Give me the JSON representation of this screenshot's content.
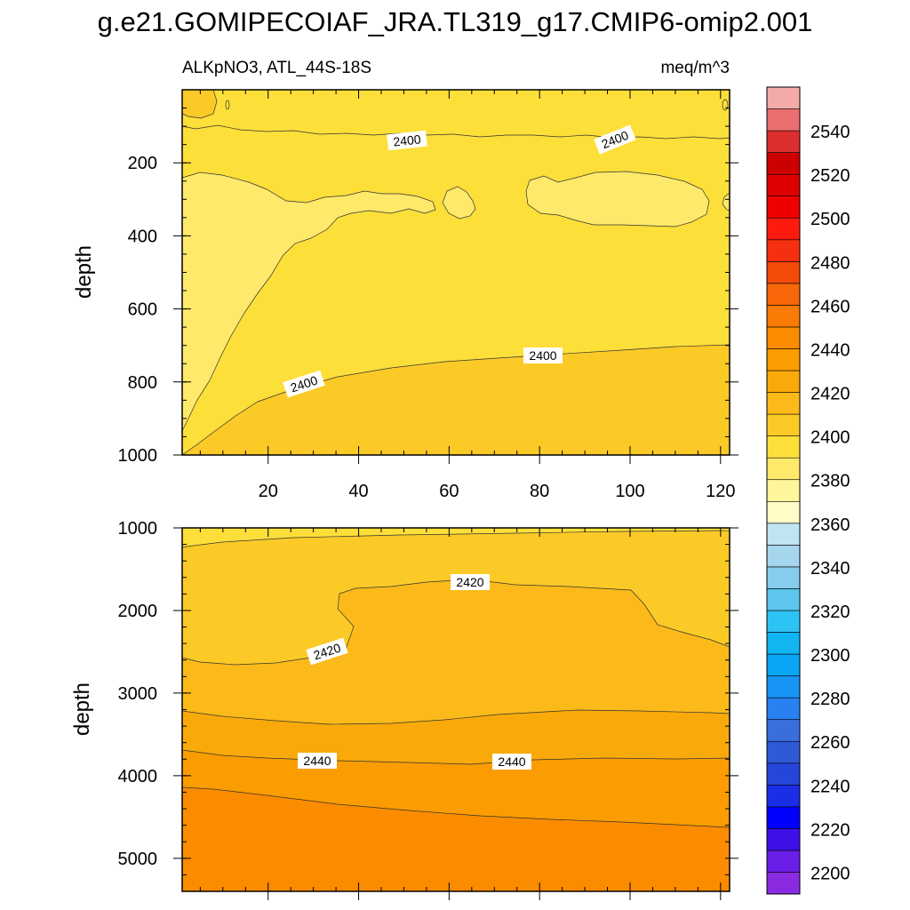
{
  "title": "g.e21.GOMIPECOIAF_JRA.TL319_g17.CMIP6-omip2.001",
  "chart_data": {
    "type": "contour",
    "variable": "ALKpNO3, ATL_44S-18S",
    "units": "meq/m^3",
    "x_ticks": [
      "20",
      "40",
      "60",
      "80",
      "100",
      "120"
    ],
    "x_tick_values": [
      20,
      40,
      60,
      80,
      100,
      120
    ],
    "xlim": [
      1,
      122
    ],
    "panels": [
      {
        "name": "upper",
        "ylabel": "depth",
        "ylim": [
          0,
          1000
        ],
        "y_ticks": [
          "200",
          "400",
          "600",
          "800",
          "1000"
        ],
        "y_tick_values": [
          200,
          400,
          600,
          800,
          1000
        ],
        "contour_labels": [
          {
            "text": "2400",
            "x": 50,
            "y": 145
          },
          {
            "text": "2400",
            "x": 96,
            "y": 165
          },
          {
            "text": "2400",
            "x": 81,
            "y": 720
          },
          {
            "text": "2400",
            "x": 28,
            "y": 820
          }
        ],
        "regions": [
          {
            "level": "2400-2410",
            "desc": "surface layer 0-150 m"
          },
          {
            "level": "2390-2400",
            "desc": "blobs near 250-350 m and west wedge 200-900 m"
          },
          {
            "level": "2400-2410",
            "desc": "bulk interior"
          },
          {
            "level": "2410-2420",
            "desc": "below 700-800 m"
          }
        ]
      },
      {
        "name": "lower",
        "ylabel": "depth",
        "ylim": [
          1000,
          5400
        ],
        "y_ticks": [
          "1000",
          "2000",
          "3000",
          "4000",
          "5000"
        ],
        "y_tick_values": [
          1000,
          2000,
          3000,
          4000,
          5000
        ],
        "contour_labels": [
          {
            "text": "2420",
            "x": 65,
            "y": 1650
          },
          {
            "text": "2420",
            "x": 33,
            "y": 2450
          },
          {
            "text": "2440",
            "x": 31,
            "y": 3800
          },
          {
            "text": "2440",
            "x": 74,
            "y": 3820
          }
        ],
        "regions": [
          {
            "level": "2410-2420",
            "desc": "1000-2600 m"
          },
          {
            "level": "2420-2430",
            "desc": "dome 1650-3200 m"
          },
          {
            "level": "2430-2440",
            "desc": "3200-3800 m"
          },
          {
            "level": "2440-2450",
            "desc": "3700-4500 m"
          },
          {
            "level": "2450-2460",
            "desc": "below 4100-4600 m"
          }
        ]
      }
    ],
    "colorbar": {
      "levels": [
        2200,
        2210,
        2220,
        2230,
        2240,
        2250,
        2260,
        2270,
        2280,
        2290,
        2300,
        2310,
        2320,
        2330,
        2340,
        2350,
        2360,
        2370,
        2380,
        2390,
        2400,
        2410,
        2420,
        2430,
        2440,
        2450,
        2460,
        2470,
        2480,
        2490,
        2500,
        2510,
        2520,
        2530,
        2540,
        2550
      ],
      "tick_labels": [
        "2200",
        "2220",
        "2240",
        "2260",
        "2280",
        "2300",
        "2320",
        "2340",
        "2360",
        "2380",
        "2400",
        "2420",
        "2440",
        "2460",
        "2480",
        "2500",
        "2520",
        "2540"
      ],
      "colors": [
        "#8a2be2",
        "#6a1ee8",
        "#3e0fe6",
        "#0000ff",
        "#1a2ee6",
        "#2646d9",
        "#2e5ad6",
        "#3a6edb",
        "#2980f0",
        "#1894f5",
        "#0aa5f5",
        "#10b5f2",
        "#2cc3f4",
        "#5cc6ee",
        "#86ccec",
        "#a6d6ee",
        "#c0e4f2",
        "#fffcc8",
        "#fff59a",
        "#fee96a",
        "#fddf3a",
        "#fcca27",
        "#fbba1a",
        "#f9aa0a",
        "#fb9c00",
        "#fb8c00",
        "#f97a04",
        "#f76608",
        "#f44a0a",
        "#f53010",
        "#ff1a10",
        "#ee0000",
        "#dd0000",
        "#cc0000",
        "#dc2e2e",
        "#ea6e6e",
        "#f5aaaa"
      ]
    }
  }
}
